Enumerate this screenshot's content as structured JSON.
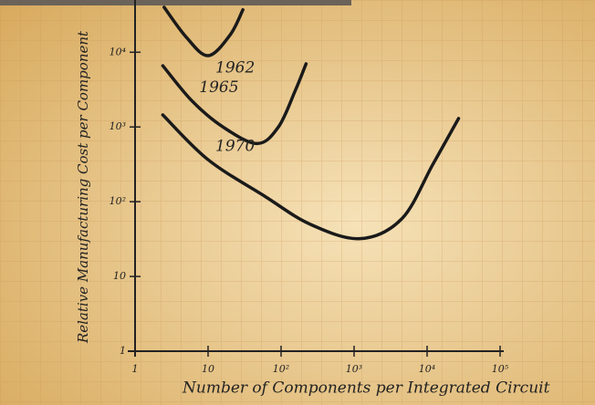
{
  "chart_data": {
    "type": "line",
    "xlabel": "Number of Components per Integrated Circuit",
    "ylabel": "Relative Manufacturing Cost per Component",
    "xscale": "log",
    "yscale": "log",
    "xlim": [
      1,
      100000
    ],
    "ylim": [
      1,
      50000
    ],
    "xticks": [
      1,
      10,
      {
        "value": 100,
        "label": "10²"
      },
      {
        "value": 1000,
        "label": "10³"
      },
      {
        "value": 10000,
        "label": "10⁴"
      },
      {
        "value": 100000,
        "label": "10⁵"
      }
    ],
    "yticks": [
      1,
      10,
      {
        "value": 100,
        "label": "10²"
      },
      {
        "value": 1000,
        "label": "10³"
      },
      {
        "value": 10000,
        "label": "10⁴"
      }
    ],
    "series": [
      {
        "name": "1962",
        "color": "#1a1a1a",
        "x": [
          2.5,
          5,
          10,
          20,
          30
        ],
        "values": [
          40000,
          16000,
          9000,
          17000,
          37000
        ]
      },
      {
        "name": "1965",
        "color": "#1a1a1a",
        "x": [
          2.4,
          6,
          16,
          47,
          92,
          155,
          220
        ],
        "values": [
          6600,
          2240,
          1000,
          600,
          1000,
          3000,
          7000
        ]
      },
      {
        "name": "1970",
        "color": "#1a1a1a",
        "x": [
          2.4,
          10,
          60,
          250,
          1200,
          4500,
          12000,
          27000
        ],
        "values": [
          1450,
          365,
          118,
          50,
          32,
          59,
          316,
          1300
        ]
      }
    ]
  }
}
